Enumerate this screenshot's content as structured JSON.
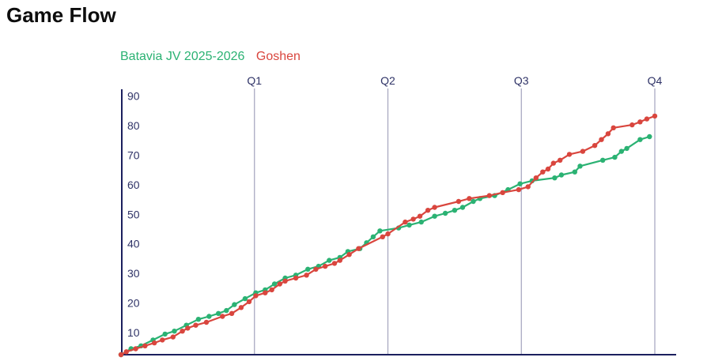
{
  "page": {
    "title": "Game Flow"
  },
  "legend": [
    {
      "label": "Batavia JV 2025-2026",
      "color": "#2bb273"
    },
    {
      "label": "Goshen",
      "color": "#d9463e"
    }
  ],
  "axis": {
    "line_color": "#1b1f5e",
    "tick_label_color": "#2f3367",
    "quarter_line_color": "#a3a3bd"
  },
  "chart_data": {
    "type": "line",
    "title": "Game Flow",
    "xlabel": "",
    "ylabel": "",
    "x_unit": "game progress in quarters (0-4)",
    "x_range": [
      0,
      4
    ],
    "ylim": [
      0,
      93
    ],
    "y_ticks": [
      10,
      20,
      30,
      40,
      50,
      60,
      70,
      80,
      90
    ],
    "grid": "vertical quarter marker lines only",
    "legend_position": "top-left above plot",
    "quarter_markers": [
      {
        "label": "Q1",
        "t": 1
      },
      {
        "label": "Q2",
        "t": 2
      },
      {
        "label": "Q3",
        "t": 3
      },
      {
        "label": "Q4",
        "t": 4
      }
    ],
    "series": [
      {
        "name": "Batavia JV 2025-2026",
        "color": "#2bb273",
        "final_score": 74,
        "points": [
          [
            0,
            0
          ],
          [
            0.075,
            2
          ],
          [
            0.15,
            3
          ],
          [
            0.24,
            5
          ],
          [
            0.33,
            7
          ],
          [
            0.4,
            8
          ],
          [
            0.49,
            10
          ],
          [
            0.58,
            12
          ],
          [
            0.66,
            13
          ],
          [
            0.73,
            14
          ],
          [
            0.79,
            15
          ],
          [
            0.85,
            17
          ],
          [
            0.93,
            19
          ],
          [
            1.01,
            21
          ],
          [
            1.08,
            22
          ],
          [
            1.15,
            24
          ],
          [
            1.23,
            26
          ],
          [
            1.31,
            27
          ],
          [
            1.4,
            29
          ],
          [
            1.48,
            30
          ],
          [
            1.56,
            32
          ],
          [
            1.64,
            33
          ],
          [
            1.7,
            35
          ],
          [
            1.79,
            36
          ],
          [
            1.84,
            38
          ],
          [
            1.89,
            40
          ],
          [
            1.94,
            42
          ],
          [
            2.08,
            43
          ],
          [
            2.16,
            44
          ],
          [
            2.25,
            45
          ],
          [
            2.35,
            47
          ],
          [
            2.43,
            48
          ],
          [
            2.5,
            49
          ],
          [
            2.56,
            50
          ],
          [
            2.64,
            52
          ],
          [
            2.69,
            53
          ],
          [
            2.8,
            54
          ],
          [
            2.9,
            56
          ],
          [
            2.99,
            58
          ],
          [
            3.08,
            59
          ],
          [
            3.25,
            60
          ],
          [
            3.3,
            61
          ],
          [
            3.4,
            62
          ],
          [
            3.44,
            64
          ],
          [
            3.61,
            66
          ],
          [
            3.7,
            67
          ],
          [
            3.75,
            69
          ],
          [
            3.79,
            70
          ],
          [
            3.89,
            73
          ],
          [
            3.96,
            74
          ]
        ]
      },
      {
        "name": "Goshen",
        "color": "#d9463e",
        "final_score": 81,
        "points": [
          [
            0,
            0
          ],
          [
            0.04,
            1
          ],
          [
            0.11,
            2
          ],
          [
            0.18,
            3
          ],
          [
            0.25,
            4
          ],
          [
            0.31,
            5
          ],
          [
            0.39,
            6
          ],
          [
            0.46,
            8
          ],
          [
            0.5,
            9
          ],
          [
            0.56,
            10
          ],
          [
            0.64,
            11
          ],
          [
            0.76,
            13
          ],
          [
            0.83,
            14
          ],
          [
            0.9,
            16
          ],
          [
            0.96,
            18
          ],
          [
            1.01,
            20
          ],
          [
            1.08,
            21
          ],
          [
            1.13,
            22
          ],
          [
            1.19,
            24
          ],
          [
            1.23,
            25
          ],
          [
            1.31,
            26
          ],
          [
            1.39,
            27
          ],
          [
            1.46,
            29
          ],
          [
            1.53,
            30
          ],
          [
            1.6,
            31
          ],
          [
            1.64,
            32
          ],
          [
            1.71,
            34
          ],
          [
            1.78,
            36
          ],
          [
            1.96,
            40
          ],
          [
            2.0,
            41
          ],
          [
            2.13,
            45
          ],
          [
            2.19,
            46
          ],
          [
            2.24,
            47
          ],
          [
            2.3,
            49
          ],
          [
            2.35,
            50
          ],
          [
            2.53,
            52
          ],
          [
            2.61,
            53
          ],
          [
            2.76,
            54
          ],
          [
            2.86,
            55
          ],
          [
            2.98,
            56
          ],
          [
            3.05,
            57
          ],
          [
            3.11,
            60
          ],
          [
            3.16,
            62
          ],
          [
            3.2,
            63
          ],
          [
            3.24,
            65
          ],
          [
            3.29,
            66
          ],
          [
            3.36,
            68
          ],
          [
            3.46,
            69
          ],
          [
            3.55,
            71
          ],
          [
            3.6,
            73
          ],
          [
            3.65,
            75
          ],
          [
            3.69,
            77
          ],
          [
            3.83,
            78
          ],
          [
            3.89,
            79
          ],
          [
            3.94,
            80
          ],
          [
            4.0,
            81
          ]
        ]
      }
    ]
  }
}
